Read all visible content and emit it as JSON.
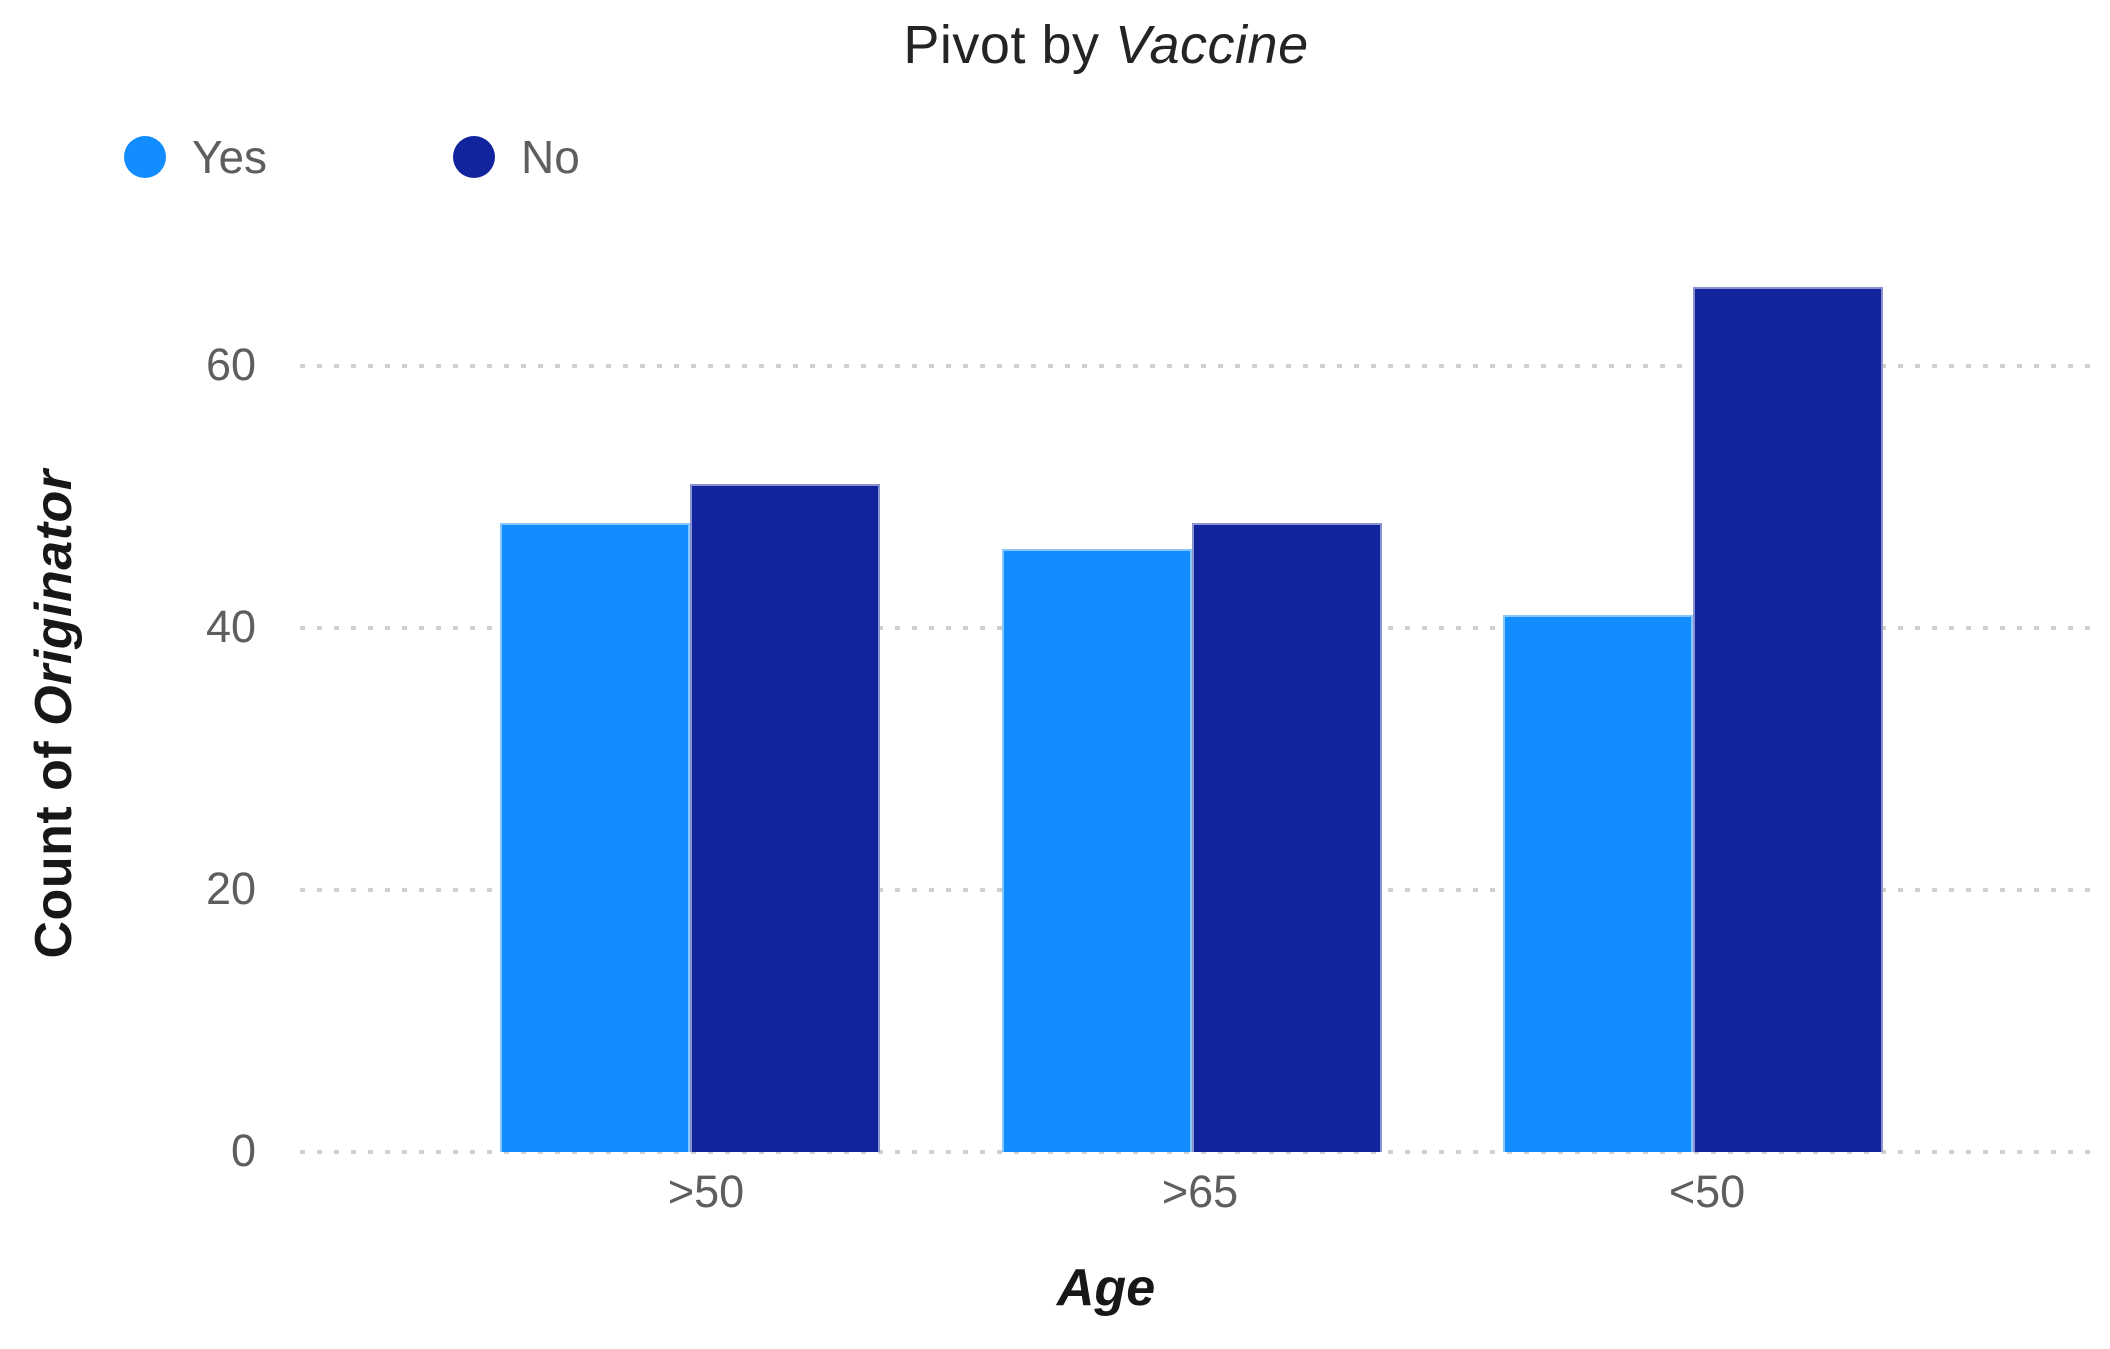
{
  "title": {
    "prefix": "Pivot by ",
    "emphasis": "Vaccine"
  },
  "y_axis": {
    "title_prefix": "Count of ",
    "title_emphasis": "Originator",
    "tick_labels": [
      "0",
      "20",
      "40",
      "60"
    ]
  },
  "x_axis": {
    "title": "Age",
    "categories": [
      ">50",
      ">65",
      "<50"
    ]
  },
  "legend": {
    "items": [
      {
        "label": "Yes",
        "color": "#118DFF"
      },
      {
        "label": "No",
        "color": "#12239E"
      }
    ]
  },
  "colors": {
    "series_yes": "#118DFF",
    "series_no": "#12239E",
    "gridline": "#d2d0ce",
    "axis_label_text": "#605E5C",
    "title_text": "#252423",
    "background": "#ffffff"
  },
  "chart_data": {
    "type": "bar",
    "title": "Pivot by Vaccine",
    "xlabel": "Age",
    "ylabel": "Count of Originator",
    "categories": [
      ">50",
      ">65",
      "<50"
    ],
    "series": [
      {
        "name": "Yes",
        "color": "#118DFF",
        "values": [
          48,
          46,
          41
        ]
      },
      {
        "name": "No",
        "color": "#12239E",
        "values": [
          51,
          48,
          66
        ]
      }
    ],
    "ylim": [
      0,
      70
    ],
    "yticks": [
      0,
      20,
      40,
      60
    ],
    "grid": "horizontal-dotted",
    "legend_position": "top-left",
    "bar_orientation": "vertical-grouped"
  }
}
